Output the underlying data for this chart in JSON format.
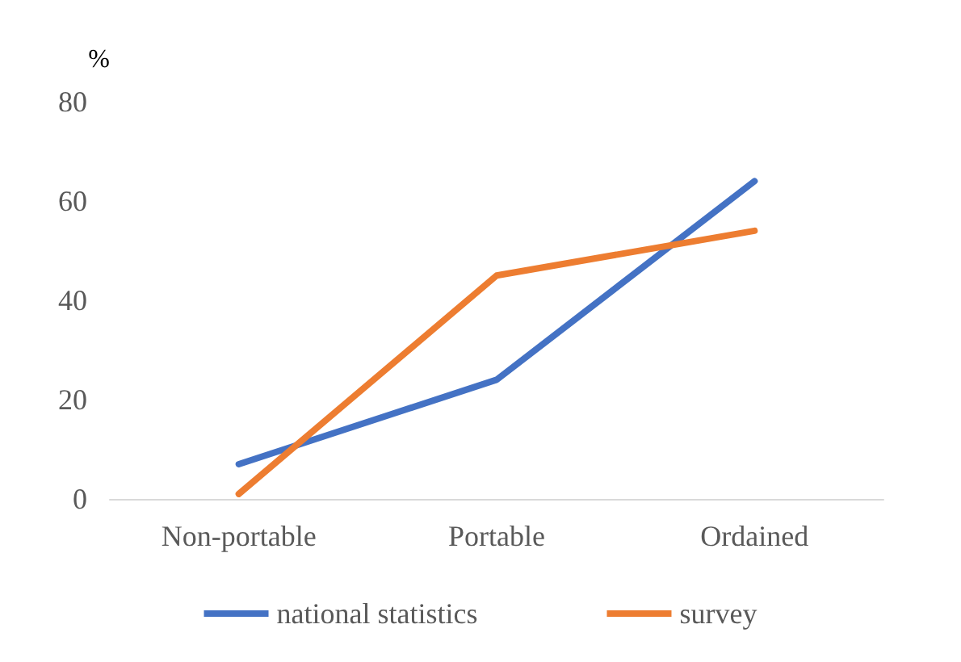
{
  "chart_data": {
    "type": "line",
    "ylabel": "%",
    "categories": [
      "Non-portable",
      "Portable",
      "Ordained"
    ],
    "series": [
      {
        "name": "national statistics",
        "color": "#4472c4",
        "values": [
          7,
          24,
          64
        ]
      },
      {
        "name": "survey",
        "color": "#ed7d31",
        "values": [
          1,
          45,
          54
        ]
      }
    ],
    "ylim": [
      0,
      80
    ],
    "yticks": [
      0,
      20,
      40,
      60,
      80
    ],
    "grid": false,
    "legend": "bottom",
    "marker": "none",
    "line_style": "solid"
  }
}
